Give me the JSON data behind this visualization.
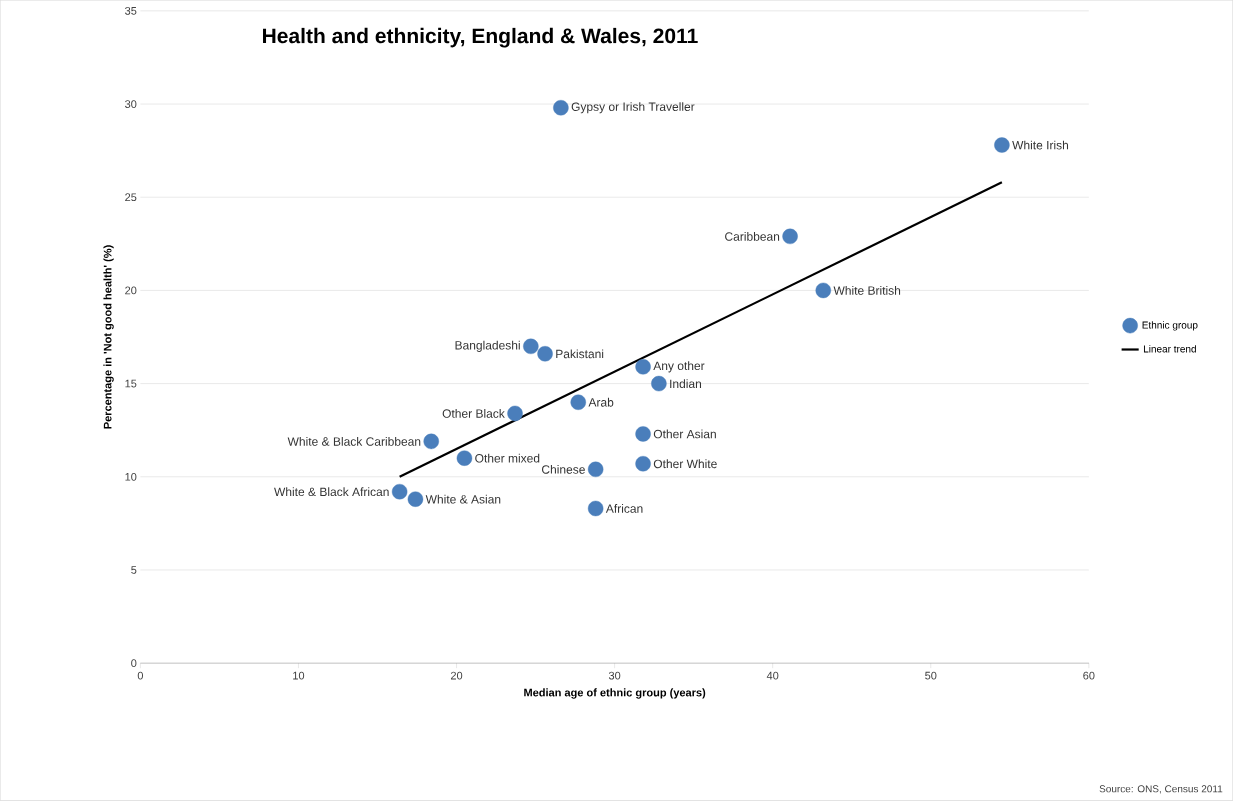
{
  "chart_data": {
    "type": "scatter",
    "title": "Health and ethnicity, England & Wales, 2011",
    "xlabel": "Median age of ethnic group (years)",
    "ylabel": "Percentage in 'Not good health' (%)",
    "xlim": [
      0,
      60
    ],
    "xticks": [
      0,
      10,
      20,
      30,
      40,
      50,
      60
    ],
    "ylim": [
      0,
      35
    ],
    "yticks": [
      0,
      5,
      10,
      15,
      20,
      25,
      30,
      35
    ],
    "grid": "y",
    "legend": "right",
    "series": [
      {
        "name": "Ethnic group",
        "marker": "circle",
        "color": "#4a7ebb",
        "x": [
          16.4,
          17.4,
          18.4,
          20.5,
          23.7,
          24.7,
          25.6,
          26.6,
          27.7,
          28.8,
          28.8,
          31.8,
          31.8,
          31.8,
          32.8,
          41.1,
          43.2,
          54.5
        ],
        "values": [
          9.2,
          8.8,
          11.9,
          11.0,
          13.4,
          17.0,
          16.6,
          29.8,
          14.0,
          10.4,
          8.3,
          15.9,
          12.3,
          10.7,
          15.0,
          22.9,
          20.0,
          27.8
        ]
      },
      {
        "name": "Linear trend",
        "type": "line",
        "marker": "none",
        "color": "#000000",
        "x": [
          16.4,
          54.5
        ],
        "values": [
          10.0,
          25.8
        ]
      }
    ],
    "annotations": [
      {
        "text": "White & Black African",
        "x": 16.4,
        "y": 9.2
      },
      {
        "text": "White & Asian",
        "x": 17.4,
        "y": 8.8
      },
      {
        "text": "White & Black Caribbean",
        "x": 18.4,
        "y": 11.9
      },
      {
        "text": "Other mixed",
        "x": 20.5,
        "y": 11.0
      },
      {
        "text": "Other Black",
        "x": 23.7,
        "y": 13.4
      },
      {
        "text": "Bangladeshi",
        "x": 24.7,
        "y": 17.0
      },
      {
        "text": "Pakistani",
        "x": 25.6,
        "y": 16.6
      },
      {
        "text": "Gypsy or Irish Traveller",
        "x": 26.6,
        "y": 29.8
      },
      {
        "text": "Arab",
        "x": 27.7,
        "y": 14.0
      },
      {
        "text": "Chinese",
        "x": 28.8,
        "y": 10.4
      },
      {
        "text": "African",
        "x": 28.8,
        "y": 8.3
      },
      {
        "text": "Any other",
        "x": 31.8,
        "y": 15.9
      },
      {
        "text": "Other Asian",
        "x": 31.8,
        "y": 12.3
      },
      {
        "text": "Other White",
        "x": 31.8,
        "y": 10.7
      },
      {
        "text": "Indian",
        "x": 32.8,
        "y": 15.0
      },
      {
        "text": "Caribbean",
        "x": 41.1,
        "y": 22.9
      },
      {
        "text": "White British",
        "x": 43.2,
        "y": 20.0
      },
      {
        "text": "White Irish",
        "x": 54.5,
        "y": 27.8
      },
      "Source: ONS, Census 2011"
    ]
  }
}
